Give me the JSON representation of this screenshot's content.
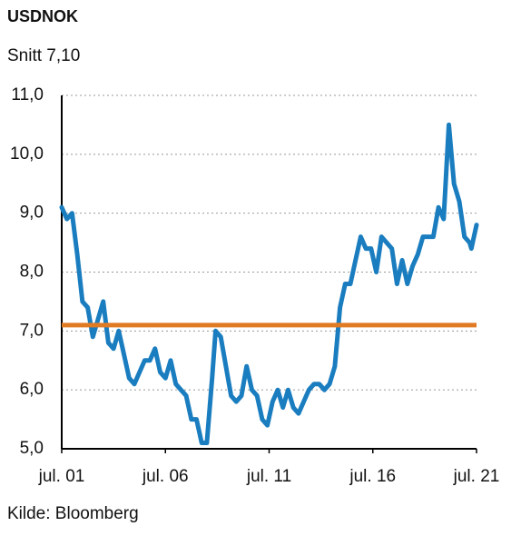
{
  "chart_data": {
    "type": "line",
    "title": "USDNOK",
    "subtitle": "Snitt 7,10",
    "source": "Kilde: Bloomberg",
    "x": [
      "2001-07",
      "2001-10",
      "2002-01",
      "2002-04",
      "2002-07",
      "2002-10",
      "2003-01",
      "2003-04",
      "2003-07",
      "2003-10",
      "2004-01",
      "2004-04",
      "2004-07",
      "2004-10",
      "2005-01",
      "2005-04",
      "2005-07",
      "2005-10",
      "2006-01",
      "2006-04",
      "2006-07",
      "2006-10",
      "2007-01",
      "2007-04",
      "2007-07",
      "2007-10",
      "2008-01",
      "2008-04",
      "2008-07",
      "2008-10",
      "2008-12",
      "2009-03",
      "2009-06",
      "2009-09",
      "2009-12",
      "2010-03",
      "2010-06",
      "2010-09",
      "2010-12",
      "2011-03",
      "2011-06",
      "2011-09",
      "2011-12",
      "2012-03",
      "2012-06",
      "2012-09",
      "2012-12",
      "2013-03",
      "2013-06",
      "2013-09",
      "2013-12",
      "2014-03",
      "2014-06",
      "2014-09",
      "2014-12",
      "2015-03",
      "2015-06",
      "2015-09",
      "2015-12",
      "2016-03",
      "2016-06",
      "2016-09",
      "2016-12",
      "2017-03",
      "2017-06",
      "2017-09",
      "2017-12",
      "2018-03",
      "2018-06",
      "2018-09",
      "2018-12",
      "2019-03",
      "2019-06",
      "2019-09",
      "2019-12",
      "2020-03",
      "2020-06",
      "2020-09",
      "2020-12",
      "2021-03",
      "2021-04",
      "2021-07"
    ],
    "series": [
      {
        "color": "#1a7dbf",
        "values": [
          9.1,
          8.9,
          9.0,
          8.3,
          7.5,
          7.4,
          6.9,
          7.2,
          7.5,
          6.8,
          6.7,
          7.0,
          6.6,
          6.2,
          6.1,
          6.3,
          6.5,
          6.5,
          6.7,
          6.3,
          6.2,
          6.5,
          6.1,
          6.0,
          5.9,
          5.5,
          5.5,
          5.1,
          5.1,
          6.2,
          7.0,
          6.9,
          6.4,
          5.9,
          5.8,
          5.9,
          6.4,
          6.0,
          5.9,
          5.5,
          5.4,
          5.8,
          6.0,
          5.7,
          6.0,
          5.7,
          5.6,
          5.8,
          6.0,
          6.1,
          6.1,
          6.0,
          6.1,
          6.4,
          7.4,
          7.8,
          7.8,
          8.2,
          8.6,
          8.4,
          8.4,
          8.0,
          8.6,
          8.5,
          8.4,
          7.8,
          8.2,
          7.8,
          8.1,
          8.3,
          8.6,
          8.6,
          8.6,
          9.1,
          8.9,
          10.5,
          9.5,
          9.2,
          8.6,
          8.5,
          8.4,
          8.8
        ]
      }
    ],
    "reference_line": {
      "value": 7.1,
      "color": "#e07b24"
    },
    "xlim": [
      "2001-07",
      "2021-07"
    ],
    "xticks": [
      {
        "value": "2001-07",
        "label": "jul. 01"
      },
      {
        "value": "2006-07",
        "label": "jul. 06"
      },
      {
        "value": "2011-07",
        "label": "jul. 11"
      },
      {
        "value": "2016-07",
        "label": "jul. 16"
      },
      {
        "value": "2021-07",
        "label": "jul. 21"
      }
    ],
    "ylim": [
      5,
      11
    ],
    "yticks": [
      {
        "value": 5,
        "label": "5,0"
      },
      {
        "value": 6,
        "label": "6,0"
      },
      {
        "value": 7,
        "label": "7,0"
      },
      {
        "value": 8,
        "label": "8,0"
      },
      {
        "value": 9,
        "label": "9,0"
      },
      {
        "value": 10,
        "label": "10,0"
      },
      {
        "value": 11,
        "label": "11,0"
      }
    ],
    "grid": true
  }
}
